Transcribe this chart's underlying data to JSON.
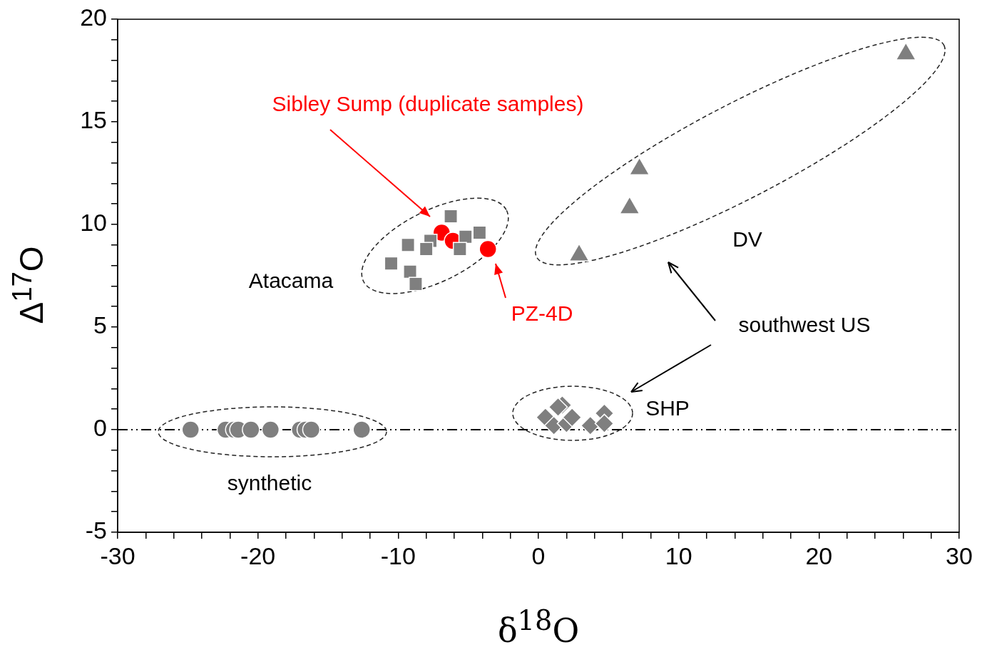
{
  "chart_data": {
    "type": "scatter",
    "xlabel": "δ$^{18}$O",
    "ylabel": "Δ$^{17}$O",
    "xlim": [
      -30,
      30
    ],
    "ylim": [
      -5,
      20
    ],
    "xticks": [
      -30,
      {
        "value": -28,
        "label": null
      },
      {
        "value": -26,
        "label": null
      },
      {
        "value": -24,
        "label": null
      },
      {
        "value": -22,
        "label": null
      },
      -20,
      {
        "value": -18,
        "label": null
      },
      {
        "value": -16,
        "label": null
      },
      {
        "value": -14,
        "label": null
      },
      {
        "value": -12,
        "label": null
      },
      -10,
      {
        "value": -8,
        "label": null
      },
      {
        "value": -6,
        "label": null
      },
      {
        "value": -4,
        "label": null
      },
      {
        "value": -2,
        "label": null
      },
      0,
      {
        "value": 2,
        "label": null
      },
      {
        "value": 4,
        "label": null
      },
      {
        "value": 6,
        "label": null
      },
      {
        "value": 8,
        "label": null
      },
      10,
      {
        "value": 12,
        "label": null
      },
      {
        "value": 14,
        "label": null
      },
      {
        "value": 16,
        "label": null
      },
      {
        "value": 18,
        "label": null
      },
      20,
      {
        "value": 22,
        "label": null
      },
      {
        "value": 24,
        "label": null
      },
      {
        "value": 26,
        "label": null
      },
      {
        "value": 28,
        "label": null
      },
      30
    ],
    "yticks": [
      -5,
      {
        "value": -4,
        "label": null
      },
      {
        "value": -3,
        "label": null
      },
      {
        "value": -2,
        "label": null
      },
      {
        "value": -1,
        "label": null
      },
      0,
      {
        "value": 1,
        "label": null
      },
      {
        "value": 2,
        "label": null
      },
      {
        "value": 3,
        "label": null
      },
      {
        "value": 4,
        "label": null
      },
      5,
      {
        "value": 6,
        "label": null
      },
      {
        "value": 7,
        "label": null
      },
      {
        "value": 8,
        "label": null
      },
      {
        "value": 9,
        "label": null
      },
      10,
      {
        "value": 11,
        "label": null
      },
      {
        "value": 12,
        "label": null
      },
      {
        "value": 13,
        "label": null
      },
      {
        "value": 14,
        "label": null
      },
      15,
      {
        "value": 16,
        "label": null
      },
      {
        "value": 17,
        "label": null
      },
      {
        "value": 18,
        "label": null
      },
      {
        "value": 19,
        "label": null
      },
      20
    ],
    "grid": false,
    "legend": false,
    "ref_lines": [
      {
        "axis": "y",
        "value": 0,
        "color": "#000000"
      }
    ],
    "series": [
      {
        "type": "scatter",
        "marker": "square",
        "color": "#7f7f7f",
        "x": [
          -6.25,
          -4.2,
          -9.3,
          -7.7,
          -5.2,
          -5.6,
          -8.0,
          -10.5,
          -9.15,
          -8.75
        ],
        "values": [
          10.4,
          9.6,
          9.0,
          9.2,
          9.4,
          8.8,
          8.8,
          8.1,
          7.7,
          7.1
        ]
      },
      {
        "type": "scatter",
        "marker": "circle",
        "color": "#ff0000",
        "x": [
          -6.9,
          -6.1,
          -3.6
        ],
        "values": [
          9.6,
          9.2,
          8.8
        ]
      },
      {
        "type": "scatter",
        "marker": "circle",
        "color": "#7f7f7f",
        "x": [
          -24.8,
          -22.3,
          -21.7,
          -21.4,
          -20.5,
          -19.1,
          -17.0,
          -16.6,
          -16.2,
          -12.6
        ],
        "values": [
          0,
          0,
          0,
          0,
          0,
          0,
          0,
          0,
          0,
          0
        ]
      },
      {
        "type": "scatter",
        "marker": "diamond",
        "color": "#7f7f7f",
        "x": [
          0.5,
          1.7,
          1.4,
          1.1,
          2.0,
          2.4,
          3.7,
          4.7,
          4.7
        ],
        "values": [
          0.6,
          1.2,
          1.1,
          0.2,
          0.3,
          0.6,
          0.2,
          0.8,
          0.3
        ]
      },
      {
        "type": "scatter",
        "marker": "triangle",
        "color": "#7f7f7f",
        "x": [
          26.2,
          7.2,
          6.5,
          2.9
        ],
        "values": [
          18.3,
          12.7,
          10.8,
          8.5
        ]
      }
    ],
    "annotations": [
      "Sibley Sump (duplicate samples)",
      "PZ-4D",
      "Atacama",
      "DV",
      "southwest US",
      "SHP",
      "synthetic"
    ]
  }
}
